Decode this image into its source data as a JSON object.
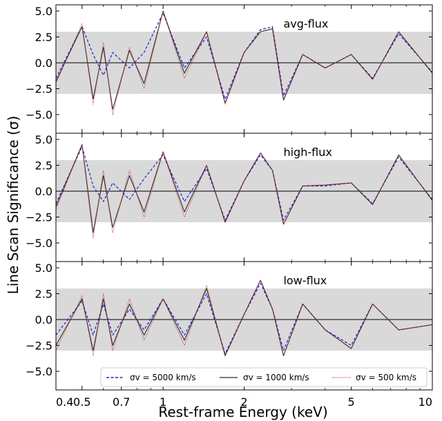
{
  "figure": {
    "ylabel": "Line Scan Significance (σ)",
    "xlabel": "Rest-frame Energy (keV)"
  },
  "colors": {
    "band": "#d9d9d9",
    "s5000": "#1f1fd6",
    "s1000": "#2b2b2b",
    "s500": "#cc2222"
  },
  "chart_data": [
    {
      "type": "line",
      "title": "avg-flux",
      "x_scale": "log",
      "xlim": [
        0.4,
        10
      ],
      "ylim": [
        -6.8,
        5.6
      ],
      "x_ticks": [
        0.4,
        0.5,
        0.7,
        1,
        2,
        5,
        10
      ],
      "x_tick_labels": [
        "0.4",
        "0.5",
        "0.7",
        "1",
        "2",
        "5",
        "10"
      ],
      "y_ticks": [
        5.0,
        2.5,
        0.0,
        -2.5,
        -5.0
      ],
      "y_tick_labels": [
        "5.0",
        "2.5",
        "0.0",
        "−2.5",
        "−5.0"
      ],
      "band": [
        -3,
        3
      ],
      "x": [
        0.4,
        0.5,
        0.55,
        0.6,
        0.65,
        0.75,
        0.85,
        1.0,
        1.2,
        1.45,
        1.7,
        2.0,
        2.3,
        2.55,
        2.8,
        3.3,
        4.0,
        5.0,
        6.0,
        7.5,
        10.0
      ],
      "series": [
        {
          "name": "σv = 5000 km/s",
          "values": [
            -1.5,
            3.5,
            0.8,
            -1.2,
            1.0,
            -0.5,
            1.0,
            4.8,
            -0.5,
            2.5,
            -3.5,
            1.0,
            3.2,
            3.5,
            -3.2,
            0.8,
            -0.5,
            0.8,
            -1.5,
            2.8,
            -0.9
          ]
        },
        {
          "name": "σv = 1000 km/s",
          "values": [
            -1.8,
            3.5,
            -3.5,
            1.5,
            -4.5,
            1.2,
            -2.0,
            5.0,
            -1.0,
            3.0,
            -3.9,
            1.0,
            3.0,
            3.3,
            -3.6,
            0.8,
            -0.5,
            0.8,
            -1.6,
            3.0,
            -1.0
          ]
        },
        {
          "name": "σv = 500 km/s",
          "values": [
            -2.0,
            3.8,
            -4.0,
            2.0,
            -5.0,
            1.5,
            -2.5,
            5.0,
            -1.5,
            3.0,
            -4.0,
            1.0,
            3.0,
            3.2,
            -3.5,
            0.8,
            -0.5,
            0.8,
            -1.6,
            3.0,
            -1.0
          ]
        }
      ]
    },
    {
      "type": "line",
      "title": "high-flux",
      "x_scale": "log",
      "xlim": [
        0.4,
        10
      ],
      "ylim": [
        -6.8,
        5.6
      ],
      "x_ticks": [
        0.4,
        0.5,
        0.7,
        1,
        2,
        5,
        10
      ],
      "x_tick_labels": [
        "0.4",
        "0.5",
        "0.7",
        "1",
        "2",
        "5",
        "10"
      ],
      "y_ticks": [
        5.0,
        2.5,
        0.0,
        -2.5,
        -5.0
      ],
      "y_tick_labels": [
        "5.0",
        "2.5",
        "0.0",
        "−2.5",
        "−5.0"
      ],
      "band": [
        -3,
        3
      ],
      "x": [
        0.4,
        0.5,
        0.55,
        0.6,
        0.65,
        0.75,
        0.85,
        1.0,
        1.2,
        1.45,
        1.7,
        2.0,
        2.3,
        2.55,
        2.8,
        3.3,
        4.0,
        5.0,
        6.0,
        7.5,
        10.0
      ],
      "series": [
        {
          "name": "σv = 5000 km/s",
          "values": [
            -1.2,
            4.3,
            0.5,
            -1.0,
            0.8,
            -0.8,
            1.2,
            3.5,
            -1.0,
            2.2,
            -2.8,
            1.0,
            3.5,
            2.0,
            -2.8,
            0.5,
            0.5,
            0.8,
            -1.2,
            3.3,
            -0.8
          ]
        },
        {
          "name": "σv = 1000 km/s",
          "values": [
            -1.5,
            4.5,
            -4.0,
            1.5,
            -3.5,
            1.5,
            -2.0,
            3.8,
            -2.0,
            2.5,
            -3.0,
            1.0,
            3.7,
            2.0,
            -3.2,
            0.5,
            0.6,
            0.8,
            -1.3,
            3.5,
            -0.9
          ]
        },
        {
          "name": "σv = 500 km/s",
          "values": [
            -1.8,
            4.5,
            -4.5,
            2.0,
            -4.0,
            2.0,
            -2.5,
            3.8,
            -2.5,
            2.5,
            -3.0,
            1.0,
            3.7,
            2.0,
            -3.2,
            0.5,
            0.6,
            0.8,
            -1.3,
            3.5,
            -0.9
          ]
        }
      ]
    },
    {
      "type": "line",
      "title": "low-flux",
      "x_scale": "log",
      "xlim": [
        0.4,
        10
      ],
      "ylim": [
        -6.8,
        5.6
      ],
      "x_ticks": [
        0.4,
        0.5,
        0.7,
        1,
        2,
        5,
        10
      ],
      "x_tick_labels": [
        "0.4",
        "0.5",
        "0.7",
        "1",
        "2",
        "5",
        "10"
      ],
      "y_ticks": [
        5.0,
        2.5,
        0.0,
        -2.5,
        -5.0
      ],
      "y_tick_labels": [
        "5.0",
        "2.5",
        "0.0",
        "−2.5",
        "−5.0"
      ],
      "band": [
        -3,
        3
      ],
      "x": [
        0.4,
        0.5,
        0.55,
        0.6,
        0.65,
        0.75,
        0.85,
        1.0,
        1.2,
        1.45,
        1.7,
        2.0,
        2.3,
        2.55,
        2.8,
        3.3,
        4.0,
        5.0,
        6.0,
        7.5,
        10.0
      ],
      "series": [
        {
          "name": "σv = 5000 km/s",
          "values": [
            -1.5,
            1.8,
            -1.5,
            1.5,
            -1.5,
            1.0,
            -1.0,
            2.0,
            -1.5,
            2.5,
            -3.3,
            0.5,
            3.5,
            1.0,
            -3.0,
            1.5,
            -1.0,
            -2.5,
            1.5,
            -1.0,
            -0.5
          ]
        },
        {
          "name": "σv = 1000 km/s",
          "values": [
            -2.5,
            2.0,
            -3.0,
            2.0,
            -2.5,
            1.5,
            -1.5,
            2.0,
            -2.0,
            3.0,
            -3.5,
            0.5,
            3.8,
            1.0,
            -3.5,
            1.5,
            -1.0,
            -2.8,
            1.5,
            -1.0,
            -0.5
          ]
        },
        {
          "name": "σv = 500 km/s",
          "values": [
            -3.0,
            2.3,
            -3.5,
            2.5,
            -3.0,
            2.0,
            -2.0,
            2.0,
            -2.5,
            3.3,
            -3.5,
            0.5,
            3.8,
            1.0,
            -3.5,
            1.5,
            -1.0,
            -2.8,
            1.5,
            -1.0,
            -0.5
          ]
        }
      ]
    }
  ]
}
